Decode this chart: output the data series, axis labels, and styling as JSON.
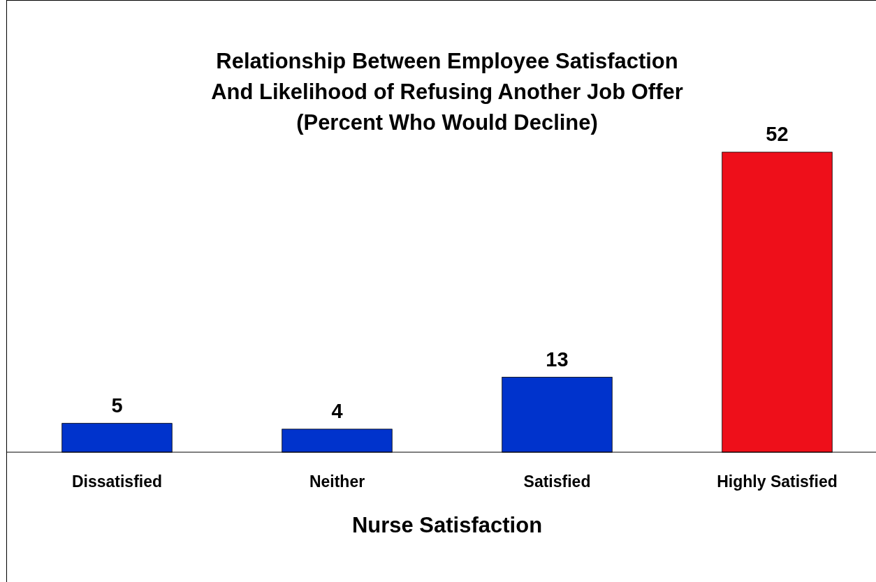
{
  "chart_data": {
    "type": "bar",
    "title": "Relationship Between Employee Satisfaction\nAnd Likelihood of Refusing Another Job Offer\n(Percent Who Would Decline)",
    "xlabel": "Nurse Satisfaction",
    "categories": [
      "Dissatisfied",
      "Neither",
      "Satisfied",
      "Highly Satisfied"
    ],
    "values": [
      5,
      4,
      13,
      52
    ],
    "colors": [
      "#0033cc",
      "#0033cc",
      "#0033cc",
      "#ee0f1a"
    ],
    "data_labels": true
  }
}
